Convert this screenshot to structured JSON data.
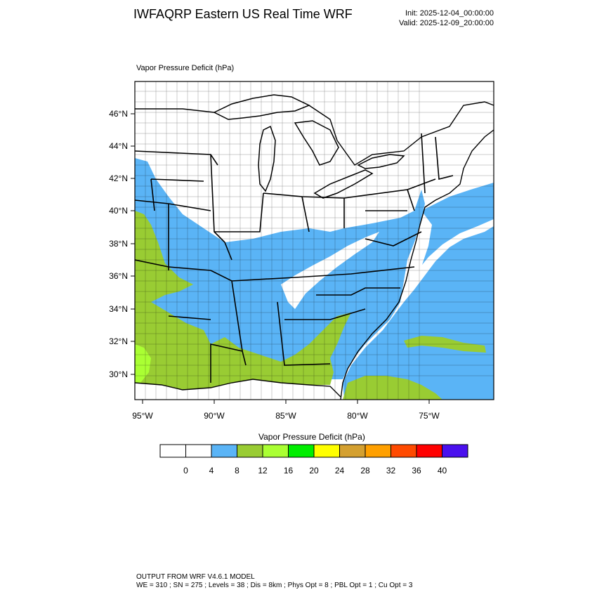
{
  "header": {
    "title": "IWFAQRP Eastern US Real Time WRF",
    "init": "Init: 2025-12-04_00:00:00",
    "valid": "Valid: 2025-12-09_20:00:00"
  },
  "map": {
    "field_label": "Vapor Pressure Deficit   (hPa)",
    "lat_labels": [
      "46°N",
      "44°N",
      "42°N",
      "40°N",
      "38°N",
      "36°N",
      "34°N",
      "32°N",
      "30°N"
    ],
    "lon_labels": [
      "95°W",
      "90°W",
      "85°W",
      "80°W",
      "75°W"
    ],
    "colors": {
      "ocean": "#5ab4f6",
      "blue": "#5ab4f6",
      "green": "#99cc33",
      "lime": "#aaff33",
      "land": "#ffffff",
      "lines": "#000000"
    }
  },
  "colorbar": {
    "title": "Vapor Pressure Deficit  (hPa)",
    "colors": [
      "#ffffff",
      "#ffffff",
      "#5ab4f6",
      "#99cc33",
      "#aaff33",
      "#00ee00",
      "#ffff00",
      "#d4a030",
      "#ffa000",
      "#ff4a00",
      "#ff0000",
      "#4a10ee"
    ],
    "ticks": [
      "0",
      "4",
      "8",
      "12",
      "16",
      "20",
      "24",
      "28",
      "32",
      "36",
      "40"
    ]
  },
  "footer": {
    "line1": "OUTPUT FROM WRF V4.6.1 MODEL",
    "line2": "WE = 310 ; SN = 275 ; Levels = 38 ; Dis = 8km ; Phys Opt = 8 ; PBL Opt = 1 ; Cu Opt = 3"
  }
}
